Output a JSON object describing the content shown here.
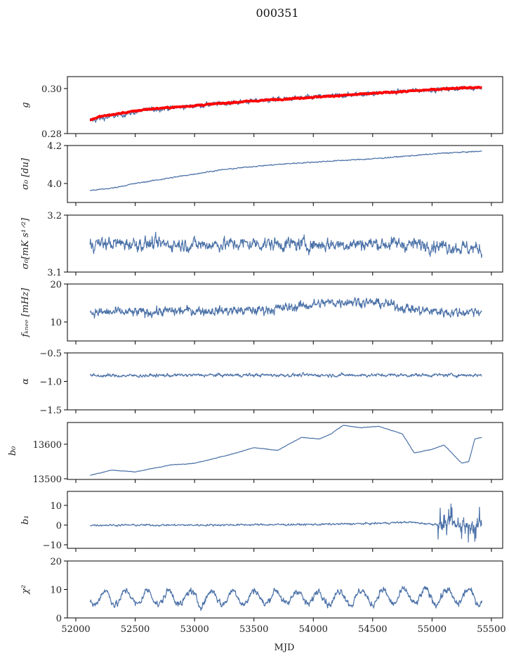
{
  "chart_data": {
    "type": "line",
    "title": "000351",
    "xlabel": "MJD",
    "xlim": [
      51929,
      55595
    ],
    "xticks": [
      52000,
      52500,
      53000,
      53500,
      54000,
      54500,
      55000,
      55500
    ],
    "xtick_labels": [
      "52000",
      "52500",
      "53000",
      "53500",
      "54000",
      "54500",
      "55000",
      "55500"
    ],
    "line_color": "#4c72a8",
    "fit_color": "#ff0000",
    "panels": [
      {
        "ylabel": "g",
        "ylim": [
          0.28,
          0.3053
        ],
        "yticks": [
          0.28,
          0.3
        ],
        "ytick_labels": [
          "0.28",
          "0.30"
        ],
        "series": {
          "x": [
            52120,
            52200,
            52400,
            52600,
            52900,
            53200,
            53500,
            53800,
            54100,
            54400,
            54700,
            55000,
            55200,
            55420
          ],
          "y": [
            0.2855,
            0.2865,
            0.2885,
            0.2905,
            0.2918,
            0.2932,
            0.2945,
            0.2955,
            0.2965,
            0.2975,
            0.2985,
            0.2995,
            0.3,
            0.3005
          ],
          "noise": 0.0011
        },
        "fit": {
          "x": [
            52120,
            52200,
            52400,
            52600,
            52900,
            53200,
            53500,
            53800,
            54100,
            54400,
            54700,
            55000,
            55200,
            55420
          ],
          "y": [
            0.286,
            0.2875,
            0.2892,
            0.2908,
            0.292,
            0.2933,
            0.2945,
            0.2955,
            0.2965,
            0.2975,
            0.2985,
            0.2995,
            0.3002,
            0.3005
          ],
          "noise": 0.0003
        }
      },
      {
        "ylabel": "σ₀ [du]",
        "ylim": [
          3.9,
          4.2
        ],
        "yticks": [
          4.0,
          4.2
        ],
        "ytick_labels": [
          "4.0",
          "4.2"
        ],
        "series": {
          "x": [
            52120,
            52300,
            52500,
            52700,
            52900,
            53200,
            53500,
            53800,
            54200,
            54500,
            54800,
            55100,
            55420
          ],
          "y": [
            3.963,
            3.975,
            4.0,
            4.02,
            4.04,
            4.07,
            4.09,
            4.105,
            4.12,
            4.13,
            4.145,
            4.16,
            4.17
          ],
          "noise": 0.003
        }
      },
      {
        "ylabel": "σ₀[mK s¹ᐟ²]",
        "ylim": [
          3.1,
          3.2
        ],
        "yticks": [
          3.1,
          3.2
        ],
        "ytick_labels": [
          "3.1",
          "3.2"
        ],
        "series": {
          "x": [
            52120,
            52500,
            53000,
            53500,
            54000,
            54500,
            55000,
            55420
          ],
          "y": [
            3.15,
            3.15,
            3.148,
            3.15,
            3.148,
            3.15,
            3.148,
            3.14
          ],
          "noise": 0.012
        }
      },
      {
        "ylabel": "fₖₙₑₑ [mHz]",
        "ylim": [
          5,
          20
        ],
        "yticks": [
          10,
          20
        ],
        "ytick_labels": [
          "10",
          "20"
        ],
        "series": {
          "x": [
            52120,
            52500,
            53000,
            53500,
            53800,
            54100,
            54300,
            54600,
            54900,
            55200,
            55420
          ],
          "y": [
            12.5,
            12.5,
            13,
            13,
            13.8,
            15,
            15.5,
            14.8,
            13,
            12.5,
            13
          ],
          "noise": 1.3
        }
      },
      {
        "ylabel": "α",
        "ylim": [
          -1.5,
          -0.5
        ],
        "yticks": [
          -1.5,
          -1.0,
          -0.5
        ],
        "ytick_labels": [
          "−1.5",
          "−1.0",
          "−0.5"
        ],
        "series": {
          "x": [
            52120,
            52500,
            53000,
            53500,
            54000,
            54500,
            55000,
            55420
          ],
          "y": [
            -0.9,
            -0.9,
            -0.89,
            -0.89,
            -0.89,
            -0.89,
            -0.89,
            -0.89
          ],
          "noise": 0.03
        }
      },
      {
        "ylabel": "b₀",
        "ylim": [
          13498,
          13663
        ],
        "yticks": [
          13500,
          13600
        ],
        "ytick_labels": [
          "13500",
          "13600"
        ],
        "series": {
          "x": [
            52120,
            52300,
            52500,
            52800,
            53000,
            53300,
            53500,
            53700,
            53900,
            54050,
            54150,
            54250,
            54400,
            54550,
            54750,
            54850,
            55000,
            55100,
            55180,
            55250,
            55310,
            55360,
            55420
          ],
          "y": [
            13510,
            13525,
            13520,
            13540,
            13545,
            13570,
            13590,
            13582,
            13620,
            13615,
            13630,
            13655,
            13648,
            13652,
            13630,
            13575,
            13585,
            13598,
            13570,
            13545,
            13550,
            13615,
            13620
          ],
          "noise": 0.8
        }
      },
      {
        "ylabel": "b₁",
        "ylim": [
          -11.8,
          17.1
        ],
        "yticks": [
          -10,
          0,
          10
        ],
        "ytick_labels": [
          "−10",
          "0",
          "10"
        ],
        "series": {
          "x": [
            52120,
            52500,
            53000,
            53500,
            54000,
            54500,
            54800,
            55000,
            55420
          ],
          "y": [
            0,
            0,
            0,
            0.2,
            0.3,
            0.8,
            1.5,
            0.5,
            0
          ],
          "noise": 0.5,
          "burst": {
            "from": 55050,
            "to": 55420,
            "noise": 4.5
          }
        }
      },
      {
        "ylabel": "χ²",
        "ylim": [
          0,
          20
        ],
        "yticks": [
          0,
          10,
          20
        ],
        "ytick_labels": [
          "0",
          "10",
          "20"
        ],
        "series": {
          "x": [
            52120,
            52500,
            53000,
            53500,
            54000,
            54500,
            55000,
            55420
          ],
          "y": [
            7,
            7.2,
            7,
            7.3,
            7.2,
            7.3,
            7.5,
            7.5
          ],
          "noise": 1.3,
          "period": 180,
          "amp": 2.5
        }
      }
    ]
  }
}
